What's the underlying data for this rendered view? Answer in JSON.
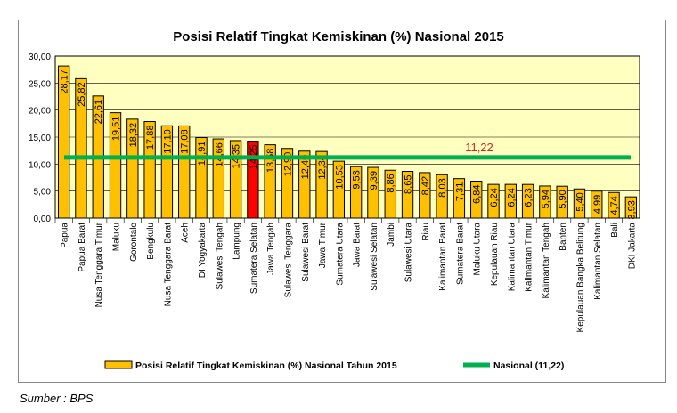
{
  "chart_data": {
    "type": "bar",
    "title": "Posisi Relatif Tingkat Kemiskinan (%) Nasional 2015",
    "categories": [
      "Papua",
      "Papua Barat",
      "Nusa Tenggara Timur",
      "Maluku",
      "Gorontalo",
      "Bengkulu",
      "Nusa Tenggara Barat",
      "Aceh",
      "DI Yogyakarta",
      "Sulawesi Tengah",
      "Lampung",
      "Sumatera Selatan",
      "Jawa Tengah",
      "Sulawesi Tenggara",
      "Sulawesi Barat",
      "Jawa Timur",
      "Sumatera Utara",
      "Jawa Barat",
      "Sulawesi Selatan",
      "Jambi",
      "Sulawesi Utara",
      "Riau",
      "Kalimantan Barat",
      "Sumatera Barat",
      "Maluku Utara",
      "Kepulauan Riau",
      "Kalimantan Utara",
      "Kalimantan Timur",
      "Kalimantan Tengah",
      "Banten",
      "Kepulauan Bangka Belitung",
      "Kalimantan Selatan",
      "Bali",
      "DKI Jakarta"
    ],
    "values": [
      28.17,
      25.82,
      22.61,
      19.51,
      18.32,
      17.88,
      17.1,
      17.08,
      14.91,
      14.66,
      14.35,
      14.25,
      13.58,
      12.9,
      12.4,
      12.34,
      10.53,
      9.53,
      9.39,
      8.86,
      8.65,
      8.42,
      8.03,
      7.31,
      6.84,
      6.24,
      6.24,
      6.23,
      5.94,
      5.9,
      5.4,
      4.99,
      4.74,
      3.93
    ],
    "highlight": "Sumatera Selatan",
    "ylim": [
      0,
      30
    ],
    "yticks": [
      "0,00",
      "5,00",
      "10,00",
      "15,00",
      "20,00",
      "25,00",
      "30,00"
    ],
    "reference_line": {
      "value": 11.22,
      "label": "11,22",
      "color": "#00b050"
    },
    "bar_color": "#ffc000",
    "highlight_color": "#ff0000",
    "plot_bg": "#ffffc0",
    "legend": {
      "position": "bottom",
      "bars": "Posisi Relatif Tingkat Kemiskinan (%) Nasional Tahun 2015",
      "line": "Nasional (11,22)"
    }
  },
  "source": "Sumber : BPS"
}
